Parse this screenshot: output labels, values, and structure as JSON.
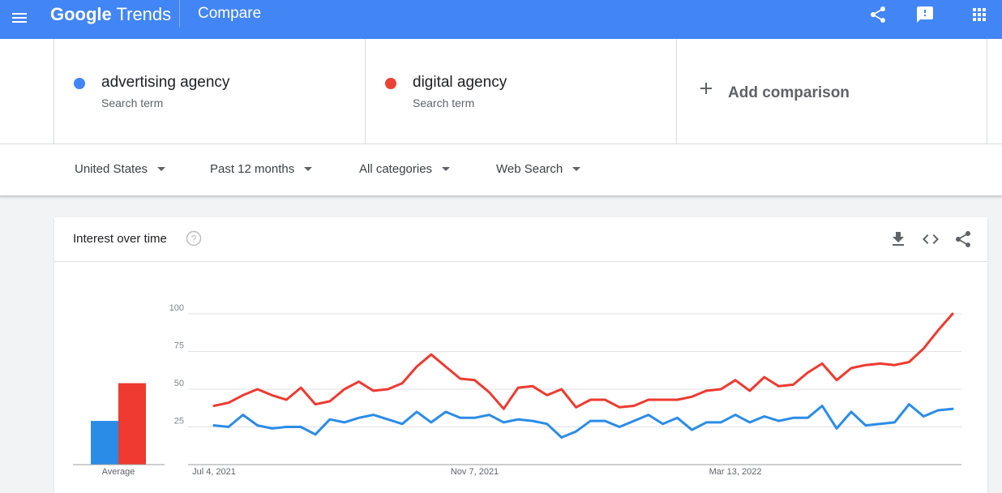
{
  "header": {
    "logo_google": "Google",
    "logo_trends": "Trends",
    "page_title": "Compare"
  },
  "terms": [
    {
      "name": "advertising agency",
      "subtitle": "Search term",
      "color": "#4285f4"
    },
    {
      "name": "digital agency",
      "subtitle": "Search term",
      "color": "#ea4335"
    }
  ],
  "add_comparison": {
    "label": "Add comparison"
  },
  "filters": {
    "region": "United States",
    "period": "Past 12 months",
    "category": "All categories",
    "property": "Web Search"
  },
  "card": {
    "title": "Interest over time"
  },
  "icons": {
    "menu": "menu-icon",
    "share": "share-icon",
    "feedback": "feedback-icon",
    "apps": "apps-icon",
    "add": "plus-icon",
    "help": "help-icon",
    "download": "download-icon",
    "embed": "embed-icon"
  },
  "chart_data": {
    "type": "line",
    "ylim": [
      0,
      100
    ],
    "y_ticks": [
      25,
      50,
      75,
      100
    ],
    "x_tick_labels": [
      "Jul 4, 2021",
      "Nov 7, 2021",
      "Mar 13, 2022"
    ],
    "average_label": "Average",
    "averages": [
      29,
      54
    ],
    "series": [
      {
        "name": "advertising agency",
        "color": "#2b8ce8",
        "values": [
          26,
          25,
          33,
          26,
          24,
          25,
          25,
          20,
          30,
          28,
          31,
          33,
          30,
          27,
          35,
          28,
          35,
          31,
          31,
          33,
          28,
          30,
          29,
          27,
          18,
          22,
          29,
          29,
          25,
          29,
          33,
          27,
          31,
          23,
          28,
          28,
          33,
          28,
          32,
          29,
          31,
          31,
          39,
          24,
          35,
          26,
          27,
          28,
          40,
          32,
          36,
          37
        ]
      },
      {
        "name": "digital agency",
        "color": "#ee3a30",
        "values": [
          39,
          41,
          46,
          50,
          46,
          43,
          51,
          40,
          42,
          50,
          55,
          49,
          50,
          54,
          65,
          73,
          65,
          57,
          56,
          48,
          37,
          51,
          52,
          46,
          50,
          38,
          43,
          43,
          38,
          39,
          43,
          43,
          43,
          45,
          49,
          50,
          56,
          49,
          58,
          52,
          53,
          61,
          67,
          56,
          64,
          66,
          67,
          66,
          68,
          77,
          89,
          100
        ]
      }
    ]
  }
}
